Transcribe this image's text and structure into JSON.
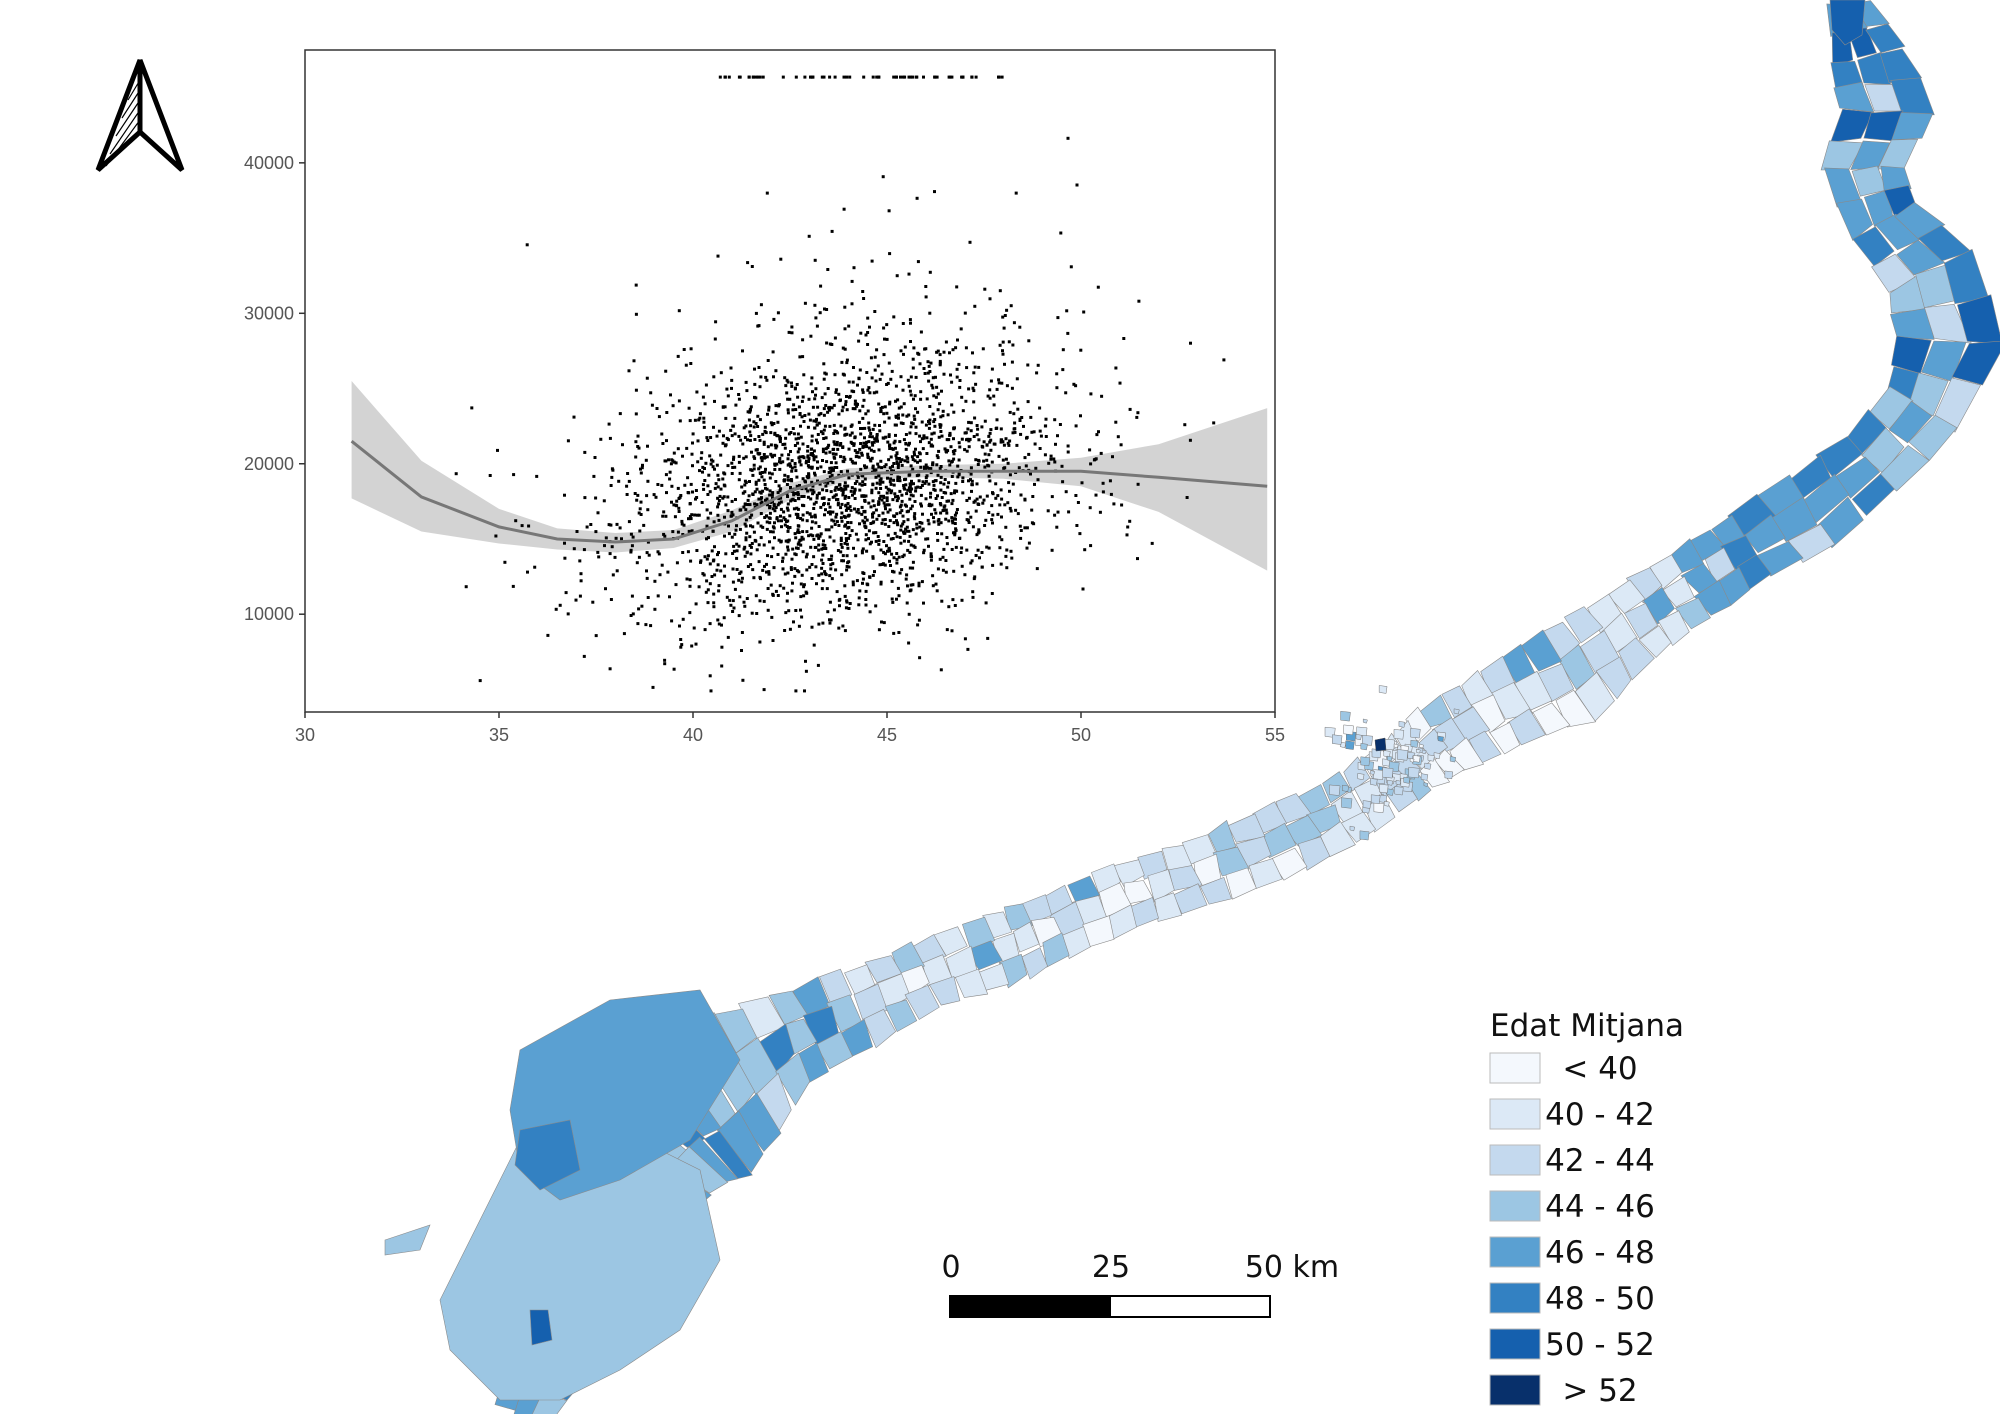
{
  "legend": {
    "title": "Edat Mitjana",
    "classes": [
      {
        "label": "< 40",
        "color": "#f4f8fd"
      },
      {
        "label": "40 - 42",
        "color": "#dce9f6"
      },
      {
        "label": "42 - 44",
        "color": "#c4d9ee"
      },
      {
        "label": "44 - 46",
        "color": "#9cc6e3"
      },
      {
        "label": "46 - 48",
        "color": "#5aa0d2"
      },
      {
        "label": "48 - 50",
        "color": "#3381c2"
      },
      {
        "label": "50 - 52",
        "color": "#1560ae"
      },
      {
        "label": "> 52",
        "color": "#08306b"
      }
    ]
  },
  "scalebar": {
    "labels": [
      "0",
      "25",
      "50 km"
    ]
  },
  "north_arrow": {
    "icon": "north-arrow-icon"
  },
  "chart_data": {
    "type": "scatter",
    "title": "",
    "xlabel": "",
    "ylabel": "",
    "xlim": [
      30,
      55
    ],
    "ylim": [
      3500,
      47500
    ],
    "xticks": [
      "30",
      "35",
      "40",
      "45",
      "50",
      "55"
    ],
    "yticks": [
      "10000",
      "20000",
      "30000",
      "40000"
    ],
    "points_note": "approx. 3000 municipal census points, clustered around x 40-48, y 10000-25000",
    "smooth": {
      "x": [
        31.2,
        33,
        35,
        36.5,
        38,
        39.5,
        41,
        42.5,
        44,
        46,
        48,
        50,
        52,
        54.8
      ],
      "y": [
        21500,
        17800,
        15800,
        15000,
        14800,
        15000,
        16200,
        18200,
        19300,
        19500,
        19500,
        19500,
        19100,
        18500
      ]
    },
    "band": {
      "upper": [
        25500,
        20200,
        17000,
        15700,
        15400,
        15600,
        16900,
        18700,
        19700,
        19900,
        20000,
        20400,
        21300,
        23700
      ],
      "lower": [
        17700,
        15500,
        14700,
        14300,
        14100,
        14400,
        15500,
        17600,
        18900,
        19100,
        19000,
        18500,
        16800,
        12900
      ]
    }
  }
}
